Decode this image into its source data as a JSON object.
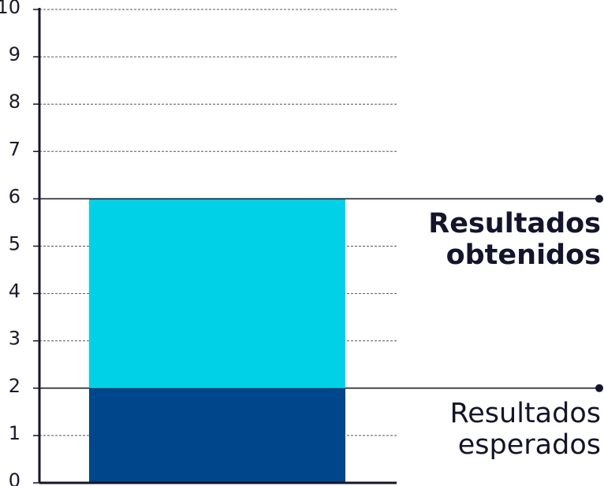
{
  "chart_data": {
    "type": "stacked-bar",
    "categories": [
      null
    ],
    "series": [
      {
        "name": "Resultados esperados",
        "color": "#00468b",
        "values": [
          2
        ]
      },
      {
        "name": "Resultados obtenidos",
        "color": "#00d1e6",
        "values": [
          4
        ]
      }
    ],
    "ylim": [
      0,
      10
    ],
    "yticks": [
      0,
      1,
      2,
      3,
      4,
      5,
      6,
      7,
      8,
      9,
      10
    ],
    "grid": true
  }
}
